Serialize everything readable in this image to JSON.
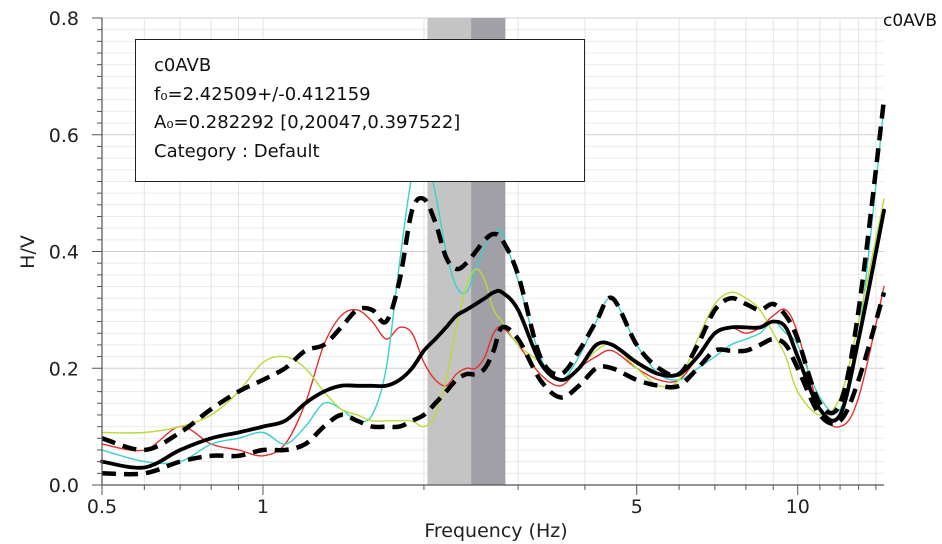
{
  "chart_data": {
    "type": "line",
    "station_label": "c0AVB",
    "xlabel": "Frequency (Hz)",
    "ylabel": "H/V",
    "xscale": "log",
    "xlim": [
      0.5,
      14.5
    ],
    "ylim": [
      0.0,
      0.8
    ],
    "x_ticks": [
      0.5,
      1,
      5,
      10
    ],
    "x_tick_labels": [
      "0.5",
      "1",
      "5",
      "10"
    ],
    "y_ticks": [
      0.0,
      0.2,
      0.4,
      0.6,
      0.8
    ],
    "y_tick_labels": [
      "0.0",
      "0.2",
      "0.4",
      "0.6",
      "0.8"
    ],
    "grid": true,
    "bands": [
      {
        "from": 2.03,
        "to": 2.45,
        "color": "#c4c4c4"
      },
      {
        "from": 2.45,
        "to": 2.84,
        "color": "#a0a0a6"
      }
    ],
    "series": [
      {
        "color": "#e63030",
        "style": "thin",
        "x": [
          0.5,
          0.6,
          0.7,
          0.8,
          0.9,
          1.0,
          1.1,
          1.2,
          1.3,
          1.4,
          1.5,
          1.6,
          1.7,
          1.8,
          1.9,
          2.0,
          2.1,
          2.2,
          2.3,
          2.4,
          2.5,
          2.6,
          2.7,
          2.8,
          3.0,
          3.3,
          3.6,
          3.9,
          4.2,
          4.5,
          5.0,
          5.5,
          6.0,
          6.5,
          7.0,
          7.5,
          8.0,
          8.5,
          9.0,
          9.5,
          10.0,
          11.0,
          12.0,
          13.0,
          14.5
        ],
        "y": [
          0.07,
          0.06,
          0.1,
          0.07,
          0.06,
          0.05,
          0.07,
          0.14,
          0.24,
          0.29,
          0.3,
          0.28,
          0.25,
          0.27,
          0.26,
          0.21,
          0.18,
          0.17,
          0.19,
          0.2,
          0.2,
          0.22,
          0.26,
          0.27,
          0.24,
          0.19,
          0.17,
          0.2,
          0.22,
          0.23,
          0.2,
          0.18,
          0.18,
          0.22,
          0.26,
          0.27,
          0.26,
          0.27,
          0.29,
          0.3,
          0.26,
          0.13,
          0.1,
          0.15,
          0.34
        ]
      },
      {
        "color": "#3ad0cc",
        "style": "thin",
        "x": [
          0.5,
          0.6,
          0.7,
          0.8,
          0.9,
          1.0,
          1.1,
          1.2,
          1.3,
          1.4,
          1.5,
          1.6,
          1.7,
          1.8,
          1.9,
          2.0,
          2.1,
          2.2,
          2.3,
          2.4,
          2.5,
          2.6,
          2.7,
          2.8,
          3.0,
          3.3,
          3.6,
          3.9,
          4.2,
          4.5,
          5.0,
          5.5,
          6.0,
          6.5,
          7.0,
          7.5,
          8.0,
          8.5,
          9.0,
          9.5,
          10.0,
          11.0,
          12.0,
          13.0,
          14.5
        ],
        "y": [
          0.06,
          0.04,
          0.04,
          0.07,
          0.08,
          0.09,
          0.07,
          0.1,
          0.14,
          0.13,
          0.11,
          0.12,
          0.2,
          0.38,
          0.53,
          0.58,
          0.5,
          0.4,
          0.34,
          0.33,
          0.37,
          0.41,
          0.43,
          0.43,
          0.35,
          0.22,
          0.18,
          0.22,
          0.28,
          0.32,
          0.24,
          0.19,
          0.18,
          0.2,
          0.22,
          0.24,
          0.25,
          0.26,
          0.28,
          0.26,
          0.24,
          0.15,
          0.13,
          0.25,
          0.65
        ]
      },
      {
        "color": "#b6dc38",
        "style": "thin",
        "x": [
          0.5,
          0.6,
          0.7,
          0.8,
          0.9,
          1.0,
          1.1,
          1.2,
          1.3,
          1.4,
          1.5,
          1.6,
          1.7,
          1.8,
          1.9,
          2.0,
          2.1,
          2.2,
          2.3,
          2.4,
          2.5,
          2.6,
          2.7,
          2.8,
          3.0,
          3.3,
          3.6,
          3.9,
          4.2,
          4.5,
          5.0,
          5.5,
          6.0,
          6.5,
          7.0,
          7.5,
          8.0,
          8.5,
          9.0,
          9.5,
          10.0,
          11.0,
          12.0,
          13.0,
          14.5
        ],
        "y": [
          0.09,
          0.09,
          0.1,
          0.12,
          0.16,
          0.21,
          0.22,
          0.2,
          0.16,
          0.13,
          0.12,
          0.11,
          0.11,
          0.11,
          0.11,
          0.1,
          0.12,
          0.18,
          0.27,
          0.34,
          0.37,
          0.35,
          0.3,
          0.28,
          0.24,
          0.21,
          0.18,
          0.2,
          0.23,
          0.24,
          0.2,
          0.17,
          0.18,
          0.25,
          0.31,
          0.33,
          0.32,
          0.3,
          0.26,
          0.22,
          0.16,
          0.12,
          0.15,
          0.28,
          0.49
        ]
      },
      {
        "color": "#000000",
        "style": "mean",
        "x": [
          0.5,
          0.6,
          0.7,
          0.8,
          0.9,
          1.0,
          1.1,
          1.2,
          1.3,
          1.4,
          1.5,
          1.6,
          1.7,
          1.8,
          1.9,
          2.0,
          2.1,
          2.2,
          2.3,
          2.4,
          2.5,
          2.6,
          2.7,
          2.8,
          3.0,
          3.3,
          3.6,
          3.9,
          4.2,
          4.5,
          5.0,
          5.5,
          6.0,
          6.5,
          7.0,
          7.5,
          8.0,
          8.5,
          9.0,
          9.5,
          10.0,
          11.0,
          12.0,
          13.0,
          14.5
        ],
        "y": [
          0.04,
          0.03,
          0.06,
          0.08,
          0.09,
          0.1,
          0.11,
          0.14,
          0.16,
          0.17,
          0.17,
          0.17,
          0.17,
          0.18,
          0.2,
          0.23,
          0.25,
          0.27,
          0.29,
          0.3,
          0.31,
          0.32,
          0.33,
          0.33,
          0.3,
          0.21,
          0.18,
          0.2,
          0.24,
          0.24,
          0.21,
          0.19,
          0.19,
          0.22,
          0.26,
          0.27,
          0.27,
          0.27,
          0.28,
          0.27,
          0.22,
          0.13,
          0.12,
          0.25,
          0.47
        ]
      },
      {
        "color": "#000000",
        "style": "upper-bound",
        "x": [
          0.5,
          0.6,
          0.7,
          0.8,
          0.9,
          1.0,
          1.1,
          1.2,
          1.3,
          1.4,
          1.5,
          1.6,
          1.7,
          1.8,
          1.9,
          2.0,
          2.1,
          2.2,
          2.3,
          2.4,
          2.5,
          2.6,
          2.7,
          2.8,
          3.0,
          3.3,
          3.6,
          3.9,
          4.2,
          4.5,
          5.0,
          5.5,
          6.0,
          6.5,
          7.0,
          7.5,
          8.0,
          8.5,
          9.0,
          9.5,
          10.0,
          11.0,
          12.0,
          13.0,
          14.5
        ],
        "y": [
          0.08,
          0.06,
          0.09,
          0.13,
          0.16,
          0.18,
          0.2,
          0.23,
          0.24,
          0.27,
          0.3,
          0.3,
          0.28,
          0.35,
          0.47,
          0.49,
          0.45,
          0.39,
          0.37,
          0.38,
          0.4,
          0.42,
          0.43,
          0.42,
          0.36,
          0.22,
          0.19,
          0.23,
          0.28,
          0.32,
          0.24,
          0.2,
          0.19,
          0.24,
          0.3,
          0.32,
          0.31,
          0.3,
          0.31,
          0.29,
          0.25,
          0.14,
          0.14,
          0.3,
          0.66
        ]
      },
      {
        "color": "#000000",
        "style": "lower-bound",
        "x": [
          0.5,
          0.6,
          0.7,
          0.8,
          0.9,
          1.0,
          1.1,
          1.2,
          1.3,
          1.4,
          1.5,
          1.6,
          1.7,
          1.8,
          1.9,
          2.0,
          2.1,
          2.2,
          2.3,
          2.4,
          2.5,
          2.6,
          2.7,
          2.8,
          3.0,
          3.3,
          3.6,
          3.9,
          4.2,
          4.5,
          5.0,
          5.5,
          6.0,
          6.5,
          7.0,
          7.5,
          8.0,
          8.5,
          9.0,
          9.5,
          10.0,
          11.0,
          12.0,
          13.0,
          14.5
        ],
        "y": [
          0.02,
          0.02,
          0.04,
          0.05,
          0.05,
          0.06,
          0.06,
          0.07,
          0.1,
          0.12,
          0.11,
          0.1,
          0.1,
          0.1,
          0.11,
          0.12,
          0.14,
          0.16,
          0.18,
          0.19,
          0.19,
          0.2,
          0.23,
          0.27,
          0.25,
          0.18,
          0.15,
          0.17,
          0.2,
          0.2,
          0.18,
          0.17,
          0.17,
          0.2,
          0.23,
          0.23,
          0.23,
          0.24,
          0.25,
          0.24,
          0.2,
          0.12,
          0.11,
          0.18,
          0.33
        ]
      }
    ]
  },
  "info_box": {
    "line1": "c0AVB",
    "line2": "f₀=2.42509+/-0.412159",
    "line3": "A₀=0.282292 [0,20047,0.397522]",
    "line4": "Category : Default"
  }
}
